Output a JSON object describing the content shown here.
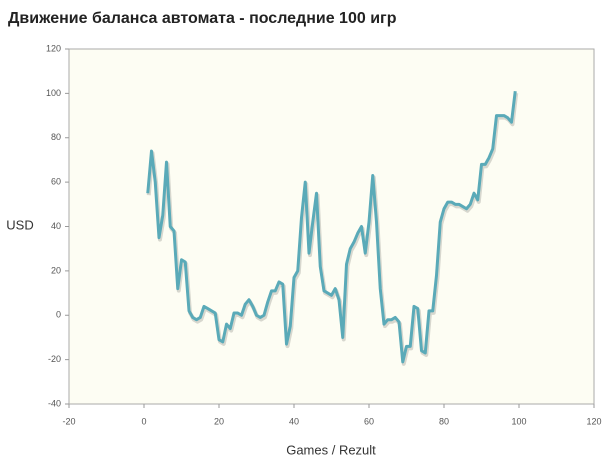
{
  "chart_data": {
    "type": "line",
    "title": "Движение баланса автомата - последние 100 игр",
    "xlabel": "Games / Rezult",
    "ylabel": "USD",
    "x": [
      1,
      2,
      3,
      4,
      5,
      6,
      7,
      8,
      9,
      10,
      11,
      12,
      13,
      14,
      15,
      16,
      17,
      18,
      19,
      20,
      21,
      22,
      23,
      24,
      25,
      26,
      27,
      28,
      29,
      30,
      31,
      32,
      33,
      34,
      35,
      36,
      37,
      38,
      39,
      40,
      41,
      42,
      43,
      44,
      45,
      46,
      47,
      48,
      49,
      50,
      51,
      52,
      53,
      54,
      55,
      56,
      57,
      58,
      59,
      60,
      61,
      62,
      63,
      64,
      65,
      66,
      67,
      68,
      69,
      70,
      71,
      72,
      73,
      74,
      75,
      76,
      77,
      78,
      79,
      80,
      81,
      82,
      83,
      84,
      85,
      86,
      87,
      88,
      89,
      90,
      91,
      92,
      93,
      94,
      95,
      96,
      97,
      98,
      99
    ],
    "series": [
      {
        "name": "USD",
        "color": "#5aaab8",
        "values": [
          55,
          74,
          60,
          35,
          45,
          69,
          40,
          38,
          12,
          25,
          24,
          2,
          -1,
          -2,
          -1,
          4,
          3,
          2,
          1,
          -11,
          -12,
          -4,
          -6,
          1,
          1,
          0,
          5,
          7,
          4,
          0,
          -1,
          0,
          6,
          11,
          11,
          15,
          14,
          -13,
          -5,
          17,
          20,
          44,
          60,
          28,
          42,
          55,
          22,
          11,
          10,
          9,
          12,
          7,
          -10,
          23,
          30,
          33,
          37,
          40,
          28,
          42,
          63,
          42,
          12,
          -4,
          -2,
          -2,
          -1,
          -3,
          -21,
          -14,
          -14,
          4,
          3,
          -16,
          -17,
          2,
          2,
          18,
          42,
          48,
          51,
          51,
          50,
          50,
          49,
          48,
          50,
          55,
          52,
          68,
          68,
          71,
          75,
          90,
          90,
          90,
          89,
          87,
          101
        ]
      }
    ],
    "xlim": [
      -20,
      120
    ],
    "xticks": [
      -20,
      0,
      20,
      40,
      60,
      80,
      100,
      120
    ],
    "ylim": [
      -40,
      120
    ],
    "yticks": [
      -40,
      -20,
      0,
      20,
      40,
      60,
      80,
      100,
      120
    ]
  }
}
